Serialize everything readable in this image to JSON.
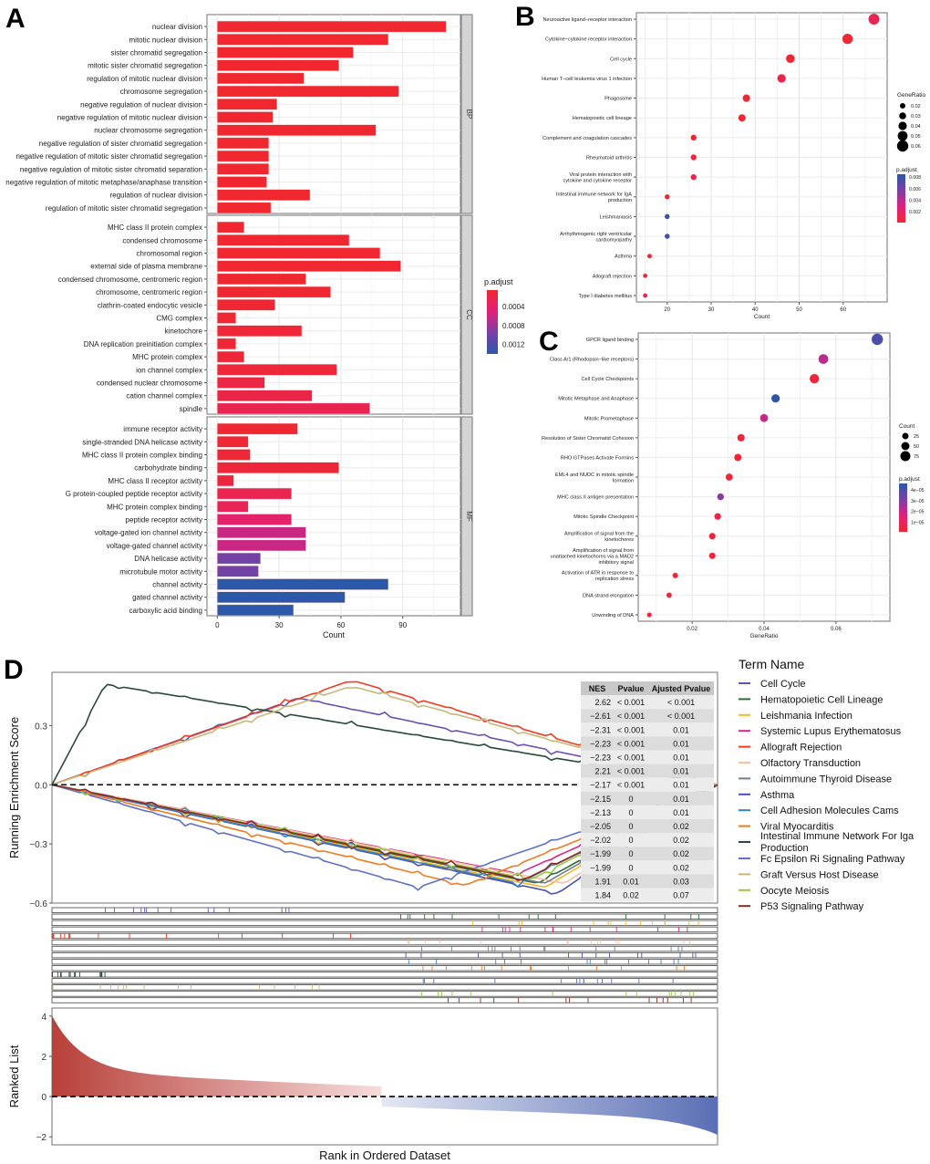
{
  "panels": {
    "a": "A",
    "b": "B",
    "c": "C",
    "d": "D"
  },
  "chart_data": [
    {
      "id": "A",
      "type": "bar",
      "orientation": "horizontal",
      "xlabel": "Count",
      "xticks": [
        0,
        30,
        60,
        90
      ],
      "xlim": [
        -5,
        118
      ],
      "legend": {
        "title": "p.adjust",
        "ticks": [
          "0.0004",
          "0.0008",
          "0.0012"
        ],
        "range": [
          5e-05,
          0.0014
        ],
        "tick_values": [
          0.0004,
          0.0008,
          0.0012
        ],
        "placement": "right",
        "colors": [
          "#f0272e",
          "#e0207a",
          "#7b3fa6",
          "#2b58a8"
        ]
      },
      "facets": [
        {
          "name": "BP",
          "categories": [
            "nuclear division",
            "mitotic nuclear division",
            "sister chromatid segregation",
            "mitotic sister chromatid segregation",
            "regulation of mitotic nuclear division",
            "chromosome segregation",
            "negative regulation of nuclear division",
            "negative regulation of mitotic nuclear division",
            "nuclear chromosome segregation",
            "negative regulation of sister chromatid segregation",
            "negative regulation of mitotic sister chromatid segregation",
            "negative regulation of mitotic sister chromatid separation",
            "negative regulation of mitotic metaphase/anaphase transition",
            "regulation of nuclear division",
            "regulation of mitotic sister chromatid segregation"
          ],
          "values": [
            111,
            83,
            66,
            59,
            42,
            88,
            29,
            27,
            77,
            25,
            25,
            25,
            24,
            45,
            26
          ],
          "padj": [
            5e-05,
            5e-05,
            5e-05,
            5e-05,
            5e-05,
            5e-05,
            5e-05,
            5e-05,
            5e-05,
            5e-05,
            5e-05,
            5e-05,
            5e-05,
            5e-05,
            5e-05
          ]
        },
        {
          "name": "CC",
          "categories": [
            "MHC class II protein complex",
            "condensed chromosome",
            "chromosomal region",
            "external side of plasma membrane",
            "condensed chromosome, centromeric region",
            "chromosome, centromeric region",
            "clathrin-coated endocytic vesicle",
            "CMG complex",
            "kinetochore",
            "DNA replication preinitiation complex",
            "MHC protein complex",
            "ion channel complex",
            "condensed nuclear chromosome",
            "cation channel complex",
            "spindle"
          ],
          "values": [
            13,
            64,
            79,
            89,
            43,
            55,
            28,
            9,
            41,
            9,
            13,
            58,
            23,
            46,
            74
          ],
          "padj": [
            6e-05,
            6e-05,
            6e-05,
            6e-05,
            7e-05,
            7e-05,
            8e-05,
            8e-05,
            9e-05,
            0.0001,
            0.0001,
            0.00012,
            0.00018,
            0.0002,
            0.00025
          ]
        },
        {
          "name": "MF",
          "categories": [
            "immune receptor activity",
            "single-stranded DNA helicase activity",
            "MHC class II protein complex binding",
            "carbohydrate binding",
            "MHC class II receptor activity",
            "G protein-coupled peptide receptor activity",
            "MHC protein complex binding",
            "peptide receptor activity",
            "voltage-gated ion channel activity",
            "voltage-gated channel activity",
            "DNA helicase activity",
            "microtubule motor activity",
            "channel activity",
            "gated channel activity",
            "carboxylic acid binding"
          ],
          "values": [
            39,
            15,
            16,
            59,
            8,
            36,
            15,
            36,
            43,
            43,
            21,
            20,
            83,
            62,
            37
          ],
          "padj": [
            8e-05,
            0.0001,
            0.0001,
            0.00012,
            0.00015,
            0.00025,
            0.00028,
            0.0004,
            0.0006,
            0.0006,
            0.001,
            0.001,
            0.0014,
            0.0014,
            0.0014
          ]
        }
      ]
    },
    {
      "id": "B",
      "type": "scatter",
      "xlabel": "Count",
      "xticks": [
        20,
        30,
        40,
        50,
        60
      ],
      "xlim": [
        13,
        70
      ],
      "categories": [
        "Neuroactive ligand−receptor interaction",
        "Cytokine−cytokine receptor interaction",
        "Cell cycle",
        "Human T−cell leukemia virus 1 infection",
        "Phagosome",
        "Hematopoietic cell lineage",
        "Complement and coagulation cascades",
        "Rheumatoid arthritis",
        "Viral protein interaction with\ncytokine and cytokine receptor",
        "Intestinal immune network for IgA\nproduction",
        "Leishmaniasis",
        "Arrhythmogenic right ventricular\ncardiomyopathy",
        "Asthma",
        "Allograft rejection",
        "Type I diabetes mellitus"
      ],
      "x": [
        67,
        61,
        48,
        46,
        38,
        37,
        26,
        26,
        26,
        20,
        20,
        20,
        16,
        15,
        15
      ],
      "gene_ratio": [
        0.065,
        0.06,
        0.048,
        0.046,
        0.038,
        0.037,
        0.026,
        0.026,
        0.026,
        0.02,
        0.02,
        0.02,
        0.016,
        0.015,
        0.015
      ],
      "padj": [
        0.0015,
        0.0003,
        0.0003,
        0.0012,
        0.0003,
        0.0003,
        0.0003,
        0.0008,
        0.0012,
        0.0003,
        0.008,
        0.008,
        0.0005,
        0.0006,
        0.001
      ],
      "size_legend": {
        "title": "GeneRatio",
        "values": [
          "0.02",
          "0.03",
          "0.04",
          "0.05",
          "0.06"
        ]
      },
      "color_legend": {
        "title": "p.adjust",
        "ticks": [
          "0.008",
          "0.006",
          "0.004",
          "0.002"
        ],
        "tick_values": [
          0.008,
          0.006,
          0.004,
          0.002
        ],
        "range": [
          0.0001,
          0.0085
        ]
      }
    },
    {
      "id": "C",
      "type": "scatter",
      "xlabel": "GeneRatio",
      "xticks": [
        "0.02",
        "0.04",
        "0.06"
      ],
      "xtick_values": [
        0.02,
        0.04,
        0.06
      ],
      "xlim": [
        0.005,
        0.075
      ],
      "categories": [
        "GPCR ligand binding",
        "Class A/1 (Rhodopsin−like receptors)",
        "Cell Cycle Checkpoints",
        "Mitotic Metaphase and Anaphase",
        "Mitotic Prometaphase",
        "Resolution of Sister Chromatid Cohesion",
        "RHO GTPases Activate Formins",
        "EML4 and NUDC in mitotic spindle\nformation",
        "MHC class II antigen presentation",
        "Mitotic Spindle Checkpoint",
        "Amplification of signal from the\nkinetochores",
        "Amplification  of signal from\nunattached  kinetochores via a MAD2\ninhibitory signal",
        "Activation of ATR in response to\nreplication stress",
        "DNA strand elongation",
        "Unwinding of DNA"
      ],
      "x": [
        0.0715,
        0.0565,
        0.054,
        0.0432,
        0.04,
        0.0336,
        0.0327,
        0.0303,
        0.0279,
        0.0271,
        0.0256,
        0.0256,
        0.0153,
        0.0136,
        0.0081
      ],
      "count": [
        88,
        69,
        66,
        53,
        49,
        41,
        40,
        37,
        34,
        33,
        31,
        31,
        19,
        17,
        10
      ],
      "padj": [
        4e-05,
        2.2e-05,
        3e-06,
        4.5e-05,
        2e-05,
        3e-06,
        3e-06,
        4e-06,
        3e-05,
        6e-06,
        4e-06,
        4e-06,
        4e-06,
        4e-06,
        4e-06
      ],
      "size_legend": {
        "title": "Count",
        "values": [
          "25",
          "50",
          "75"
        ]
      },
      "color_legend": {
        "title": "p.adjust",
        "ticks": [
          "4e−05",
          "3e−05",
          "2e−05",
          "1e−05"
        ],
        "tick_values": [
          4e-05,
          3e-05,
          2e-05,
          1e-05
        ],
        "range": [
          1e-06,
          4.6e-05
        ]
      }
    },
    {
      "id": "D",
      "type": "line",
      "ylabel": "Running Enrichment Score",
      "yticks": [
        "0.3",
        "0.0",
        "−0.6",
        "−0.3"
      ],
      "ytick_values": [
        0.3,
        0.0,
        -0.6,
        -0.3
      ],
      "ylim": [
        -0.6,
        0.57
      ],
      "rank_xlabel": "Rank in Ordered Dataset",
      "rank_ylabel": "Ranked List",
      "rank_yticks": [
        "4",
        "2",
        "0",
        "−2"
      ],
      "rank_ytick_values": [
        4,
        2,
        0,
        -2
      ],
      "rank_ylim": [
        -2.4,
        4.4
      ],
      "legend_title": "Term Name",
      "table": {
        "headers": [
          "NES",
          "Pvalue",
          "Ajusted Pvalue"
        ],
        "rows": [
          [
            "2.62",
            "< 0.001",
            "< 0.001"
          ],
          [
            "−2.61",
            "< 0.001",
            "< 0.001"
          ],
          [
            "−2.31",
            "< 0.001",
            "0.01"
          ],
          [
            "−2.23",
            "< 0.001",
            "0.01"
          ],
          [
            "−2.23",
            "< 0.001",
            "0.01"
          ],
          [
            "2.21",
            "< 0.001",
            "0.01"
          ],
          [
            "−2.17",
            "< 0.001",
            "0.01"
          ],
          [
            "−2.15",
            "0",
            "0.01"
          ],
          [
            "−2.13",
            "0",
            "0.01"
          ],
          [
            "−2.05",
            "0",
            "0.02"
          ],
          [
            "−2.02",
            "0",
            "0.02"
          ],
          [
            "−1.99",
            "0",
            "0.02"
          ],
          [
            "−1.99",
            "0",
            "0.02"
          ],
          [
            "1.91",
            "0.01",
            "0.03"
          ],
          [
            "1.84",
            "0.02",
            "0.07"
          ]
        ]
      },
      "series": [
        {
          "name": "Cell Cycle",
          "color": "#6a4fb5",
          "peak_x": 0.37,
          "peak_y": 0.44,
          "direction": "up"
        },
        {
          "name": "Hematopoietic Cell Lineage",
          "color": "#2e6b3a",
          "peak_x": 0.73,
          "peak_y": -0.5,
          "direction": "down"
        },
        {
          "name": "Leishmania Infection",
          "color": "#f0b822",
          "peak_x": 0.74,
          "peak_y": -0.52,
          "direction": "down"
        },
        {
          "name": "Systemic Lupus Erythematosus",
          "color": "#d6268c",
          "peak_x": 0.7,
          "peak_y": -0.45,
          "direction": "down"
        },
        {
          "name": "Allograft Rejection",
          "color": "#f03a1e",
          "peak_x": 0.45,
          "peak_y": 0.53,
          "direction": "up"
        },
        {
          "name": "Olfactory Transduction",
          "color": "#f7c0a0",
          "peak_x": 0.77,
          "peak_y": -0.5,
          "direction": "down"
        },
        {
          "name": "Autoimmune Thyroid Disease",
          "color": "#6e7f90",
          "peak_x": 0.74,
          "peak_y": -0.5,
          "direction": "down"
        },
        {
          "name": "Asthma",
          "color": "#4a4fb0",
          "peak_x": 0.76,
          "peak_y": -0.55,
          "direction": "down"
        },
        {
          "name": "Cell Adhesion Molecules Cams",
          "color": "#3a7fc0",
          "peak_x": 0.7,
          "peak_y": -0.5,
          "direction": "down"
        },
        {
          "name": "Viral Myocarditis",
          "color": "#f07a20",
          "peak_x": 0.62,
          "peak_y": -0.51,
          "direction": "down"
        },
        {
          "name": "Intestinal Immune Network For Iga Production",
          "color": "#2a4a40",
          "peak_x": 0.08,
          "peak_y": 0.51,
          "direction": "up"
        },
        {
          "name": "Fc Epsilon Ri Signaling Pathway",
          "color": "#6070c8",
          "peak_x": 0.55,
          "peak_y": -0.52,
          "direction": "down"
        },
        {
          "name": "Graft Versus Host Disease",
          "color": "#c8b878",
          "peak_x": 0.45,
          "peak_y": 0.5,
          "direction": "up"
        },
        {
          "name": "Oocyte Meiosis",
          "color": "#98c840",
          "peak_x": 0.72,
          "peak_y": -0.48,
          "direction": "down"
        },
        {
          "name": "P53 Signaling Pathway",
          "color": "#8a2a22",
          "peak_x": 0.71,
          "peak_y": -0.48,
          "direction": "down"
        }
      ]
    }
  ]
}
